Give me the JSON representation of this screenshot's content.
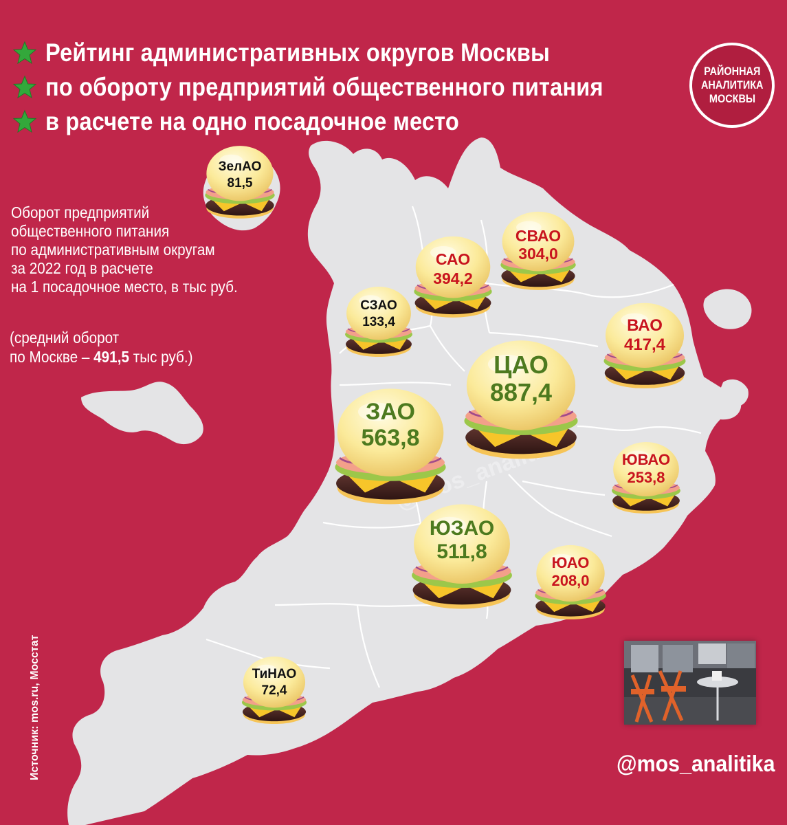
{
  "title": {
    "lines": [
      "Рейтинг административных округов Москвы",
      "по обороту предприятий общественного питания",
      "в расчете на одно посадочное место"
    ]
  },
  "badge": {
    "lines": [
      "РАЙОННАЯ",
      "АНАЛИТИКА",
      "МОСКВЫ"
    ]
  },
  "description": {
    "lines": [
      "Оборот предприятий",
      "общественного питания",
      "по административным округам",
      "за 2022 год в расчете",
      "на 1 посадочное место, в тыс руб."
    ]
  },
  "average": {
    "line1": "(средний оборот",
    "prefix": "по Москве – ",
    "value": "491,5",
    "suffix": " тыс руб.)"
  },
  "source": "Источник: mos.ru, Мосстат",
  "handle": "@mos_analitika",
  "watermark": "@mos_analitika",
  "colors": {
    "background": "#c0264a",
    "map": "#e4e4e6",
    "above_average": "#4d7a1f",
    "below_average": "#c8141e",
    "low": "#111111",
    "star": "#33a83b"
  },
  "districts": [
    {
      "name": "ЗелАО",
      "value": "81,5",
      "color": "#111111"
    },
    {
      "name": "САО",
      "value": "394,2",
      "color": "#c8141e"
    },
    {
      "name": "СВАО",
      "value": "304,0",
      "color": "#c8141e"
    },
    {
      "name": "СЗАО",
      "value": "133,4",
      "color": "#111111"
    },
    {
      "name": "ВАО",
      "value": "417,4",
      "color": "#c8141e"
    },
    {
      "name": "ЦАО",
      "value": "887,4",
      "color": "#4d7a1f"
    },
    {
      "name": "ЗАО",
      "value": "563,8",
      "color": "#4d7a1f"
    },
    {
      "name": "ЮВАО",
      "value": "253,8",
      "color": "#c8141e"
    },
    {
      "name": "ЮЗАО",
      "value": "511,8",
      "color": "#4d7a1f"
    },
    {
      "name": "ЮАО",
      "value": "208,0",
      "color": "#c8141e"
    },
    {
      "name": "ТиНАО",
      "value": "72,4",
      "color": "#111111"
    }
  ]
}
